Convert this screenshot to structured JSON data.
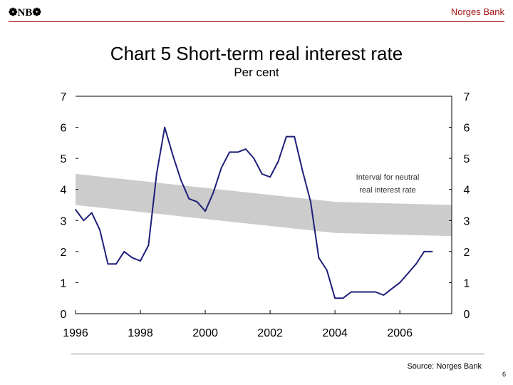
{
  "header": {
    "logo_text": "NB",
    "brand": "Norges Bank"
  },
  "footer": {
    "source": "Source: Norges Bank",
    "page_number": "6"
  },
  "chart_data": {
    "type": "line",
    "title": "Chart 5 Short-term real interest rate",
    "subtitle": "Per cent",
    "xlim": [
      1996,
      2007.6
    ],
    "ylim": [
      0,
      7
    ],
    "x_ticks": [
      1996,
      1998,
      2000,
      2002,
      2004,
      2006
    ],
    "y_ticks": [
      0,
      1,
      2,
      3,
      4,
      5,
      6,
      7
    ],
    "grid": false,
    "series": [
      {
        "name": "",
        "color": "#1f1f7a",
        "x": [
          1996.0,
          1996.25,
          1996.5,
          1996.75,
          1997.0,
          1997.25,
          1997.5,
          1997.75,
          1998.0,
          1998.25,
          1998.5,
          1998.75,
          1999.0,
          1999.25,
          1999.5,
          1999.75,
          2000.0,
          2000.25,
          2000.5,
          2000.75,
          2001.0,
          2001.25,
          2001.5,
          2001.75,
          2002.0,
          2002.25,
          2002.5,
          2002.75,
          2003.0,
          2003.25,
          2003.5,
          2003.75,
          2004.0,
          2004.25,
          2004.5,
          2004.75,
          2005.0,
          2005.25,
          2005.5,
          2005.75,
          2006.0,
          2006.25,
          2006.5,
          2006.75,
          2007.0
        ],
        "y": [
          3.35,
          3.0,
          3.25,
          2.7,
          1.6,
          1.6,
          2.0,
          1.8,
          1.7,
          2.2,
          4.5,
          6.0,
          5.1,
          4.3,
          3.7,
          3.6,
          3.3,
          3.9,
          4.7,
          5.2,
          5.2,
          5.3,
          5.0,
          4.5,
          4.4,
          4.9,
          5.7,
          5.7,
          4.6,
          3.6,
          1.8,
          1.4,
          0.5,
          0.5,
          0.7,
          0.7,
          0.7,
          0.7,
          0.6,
          0.8,
          1.0,
          1.3,
          1.6,
          2.0,
          2.0
        ]
      }
    ],
    "band": {
      "label_line1": "Interval for neutral",
      "label_line2": "real interest rate",
      "color": "#cccccc",
      "x": [
        1996.0,
        2004.0,
        2007.6
      ],
      "upper": [
        4.5,
        3.6,
        3.5
      ],
      "lower": [
        3.5,
        2.6,
        2.5
      ]
    }
  }
}
